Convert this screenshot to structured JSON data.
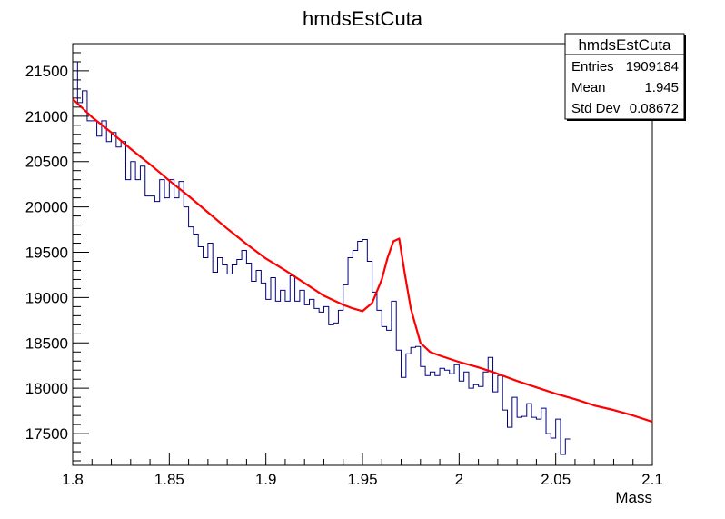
{
  "chart_data": {
    "type": "line",
    "title": "hmdsEstCuta",
    "xlabel": "Mass",
    "ylabel": "",
    "xlim": [
      1.8,
      2.1
    ],
    "ylim": [
      17150,
      21800
    ],
    "xticks": [
      "1.8",
      "1.85",
      "1.9",
      "1.95",
      "2",
      "2.05",
      "2.1"
    ],
    "yticks": [
      "17500",
      "18000",
      "18500",
      "19000",
      "19500",
      "20000",
      "20500",
      "21000",
      "21500"
    ],
    "stats": {
      "name": "hmdsEstCuta",
      "rows": [
        {
          "label": "Entries",
          "value": "1909184"
        },
        {
          "label": "Mean",
          "value": "1.945"
        },
        {
          "label": "Std Dev",
          "value": "0.08672"
        }
      ]
    },
    "series": [
      {
        "kind": "histogram",
        "color": "#000080",
        "bin_width": 0.0025,
        "values": [
          21600,
          21150,
          21280,
          20950,
          20950,
          20780,
          20950,
          20720,
          20820,
          20660,
          20720,
          20300,
          20500,
          20300,
          20450,
          20120,
          20120,
          20060,
          20300,
          20100,
          20300,
          20100,
          20280,
          20000,
          19780,
          19700,
          19560,
          19440,
          19600,
          19280,
          19440,
          19360,
          19260,
          19360,
          19420,
          19520,
          19380,
          19180,
          19300,
          19160,
          18980,
          19220,
          18960,
          19080,
          18960,
          19240,
          18960,
          19080,
          18920,
          18980,
          18880,
          18840,
          18900,
          18700,
          18720,
          18860,
          19140,
          19440,
          19520,
          19620,
          19640,
          19400,
          19060,
          18860,
          18680,
          18640,
          18960,
          18420,
          18120,
          18380,
          18450,
          18460,
          18240,
          18140,
          18180,
          18140,
          18220,
          18200,
          18160,
          18260,
          18080,
          18180,
          18000,
          18040,
          18020,
          18180,
          18340,
          17960,
          18140,
          17760,
          17570,
          17900,
          17680,
          17690,
          17830,
          17680,
          17660,
          17780,
          17500,
          17450,
          17660,
          17270,
          17440
        ]
      },
      {
        "kind": "fit",
        "color": "#ff0000",
        "description": "fit",
        "x": [
          1.8,
          1.81,
          1.82,
          1.83,
          1.84,
          1.85,
          1.86,
          1.87,
          1.88,
          1.89,
          1.9,
          1.91,
          1.92,
          1.93,
          1.94,
          1.945,
          1.95,
          1.955,
          1.96,
          1.963,
          1.966,
          1.969,
          1.972,
          1.975,
          1.98,
          1.985,
          1.99,
          2.0,
          2.01,
          2.02,
          2.03,
          2.04,
          2.05,
          2.06,
          2.07,
          2.08,
          2.09,
          2.1
        ],
        "y": [
          21190,
          20990,
          20820,
          20640,
          20470,
          20290,
          20120,
          19940,
          19760,
          19590,
          19430,
          19300,
          19160,
          19020,
          18920,
          18880,
          18850,
          18940,
          19200,
          19440,
          19620,
          19650,
          19250,
          18880,
          18500,
          18400,
          18360,
          18290,
          18230,
          18160,
          18080,
          18010,
          17940,
          17880,
          17810,
          17760,
          17700,
          17630
        ]
      }
    ]
  }
}
